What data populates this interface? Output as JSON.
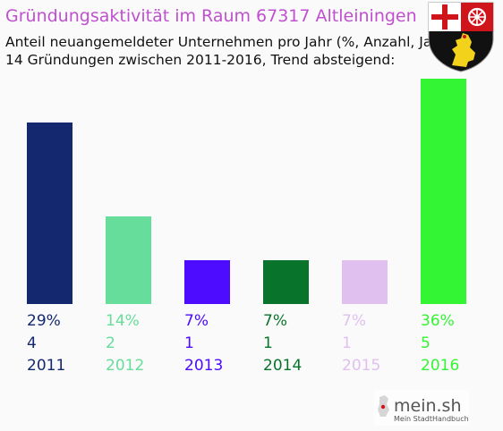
{
  "header": {
    "title": "Gründungsaktivität im Raum 67317 Altleiningen",
    "subtitle_line1": "Anteil neuangemeldeter Unternehmen pro Jahr (%, Anzahl, Jahr)",
    "subtitle_line2": "14 Gründungen zwischen 2011-2016, Trend absteigend:"
  },
  "colors": {
    "title": "#c050d0",
    "background": "#fafafa"
  },
  "branding": {
    "name": "mein.sh",
    "tagline": "Mein StadtHandbuch"
  },
  "coat_of_arms_icon": "rhineland-palatinate-coat-of-arms-icon",
  "chart_data": {
    "type": "bar",
    "title": "Gründungsaktivität im Raum 67317 Altleiningen",
    "categories": [
      "2011",
      "2012",
      "2013",
      "2014",
      "2015",
      "2016"
    ],
    "values": [
      29,
      14,
      7,
      7,
      7,
      36
    ],
    "percent_labels": [
      "29%",
      "14%",
      "7%",
      "7%",
      "7%",
      "36%"
    ],
    "counts": [
      "4",
      "2",
      "1",
      "1",
      "1",
      "5"
    ],
    "colors": [
      "#142870",
      "#66dd9a",
      "#4d0bff",
      "#08742b",
      "#dfc0ef",
      "#33f534"
    ],
    "ylim": [
      0,
      36
    ],
    "grid": false,
    "legend": "none"
  }
}
